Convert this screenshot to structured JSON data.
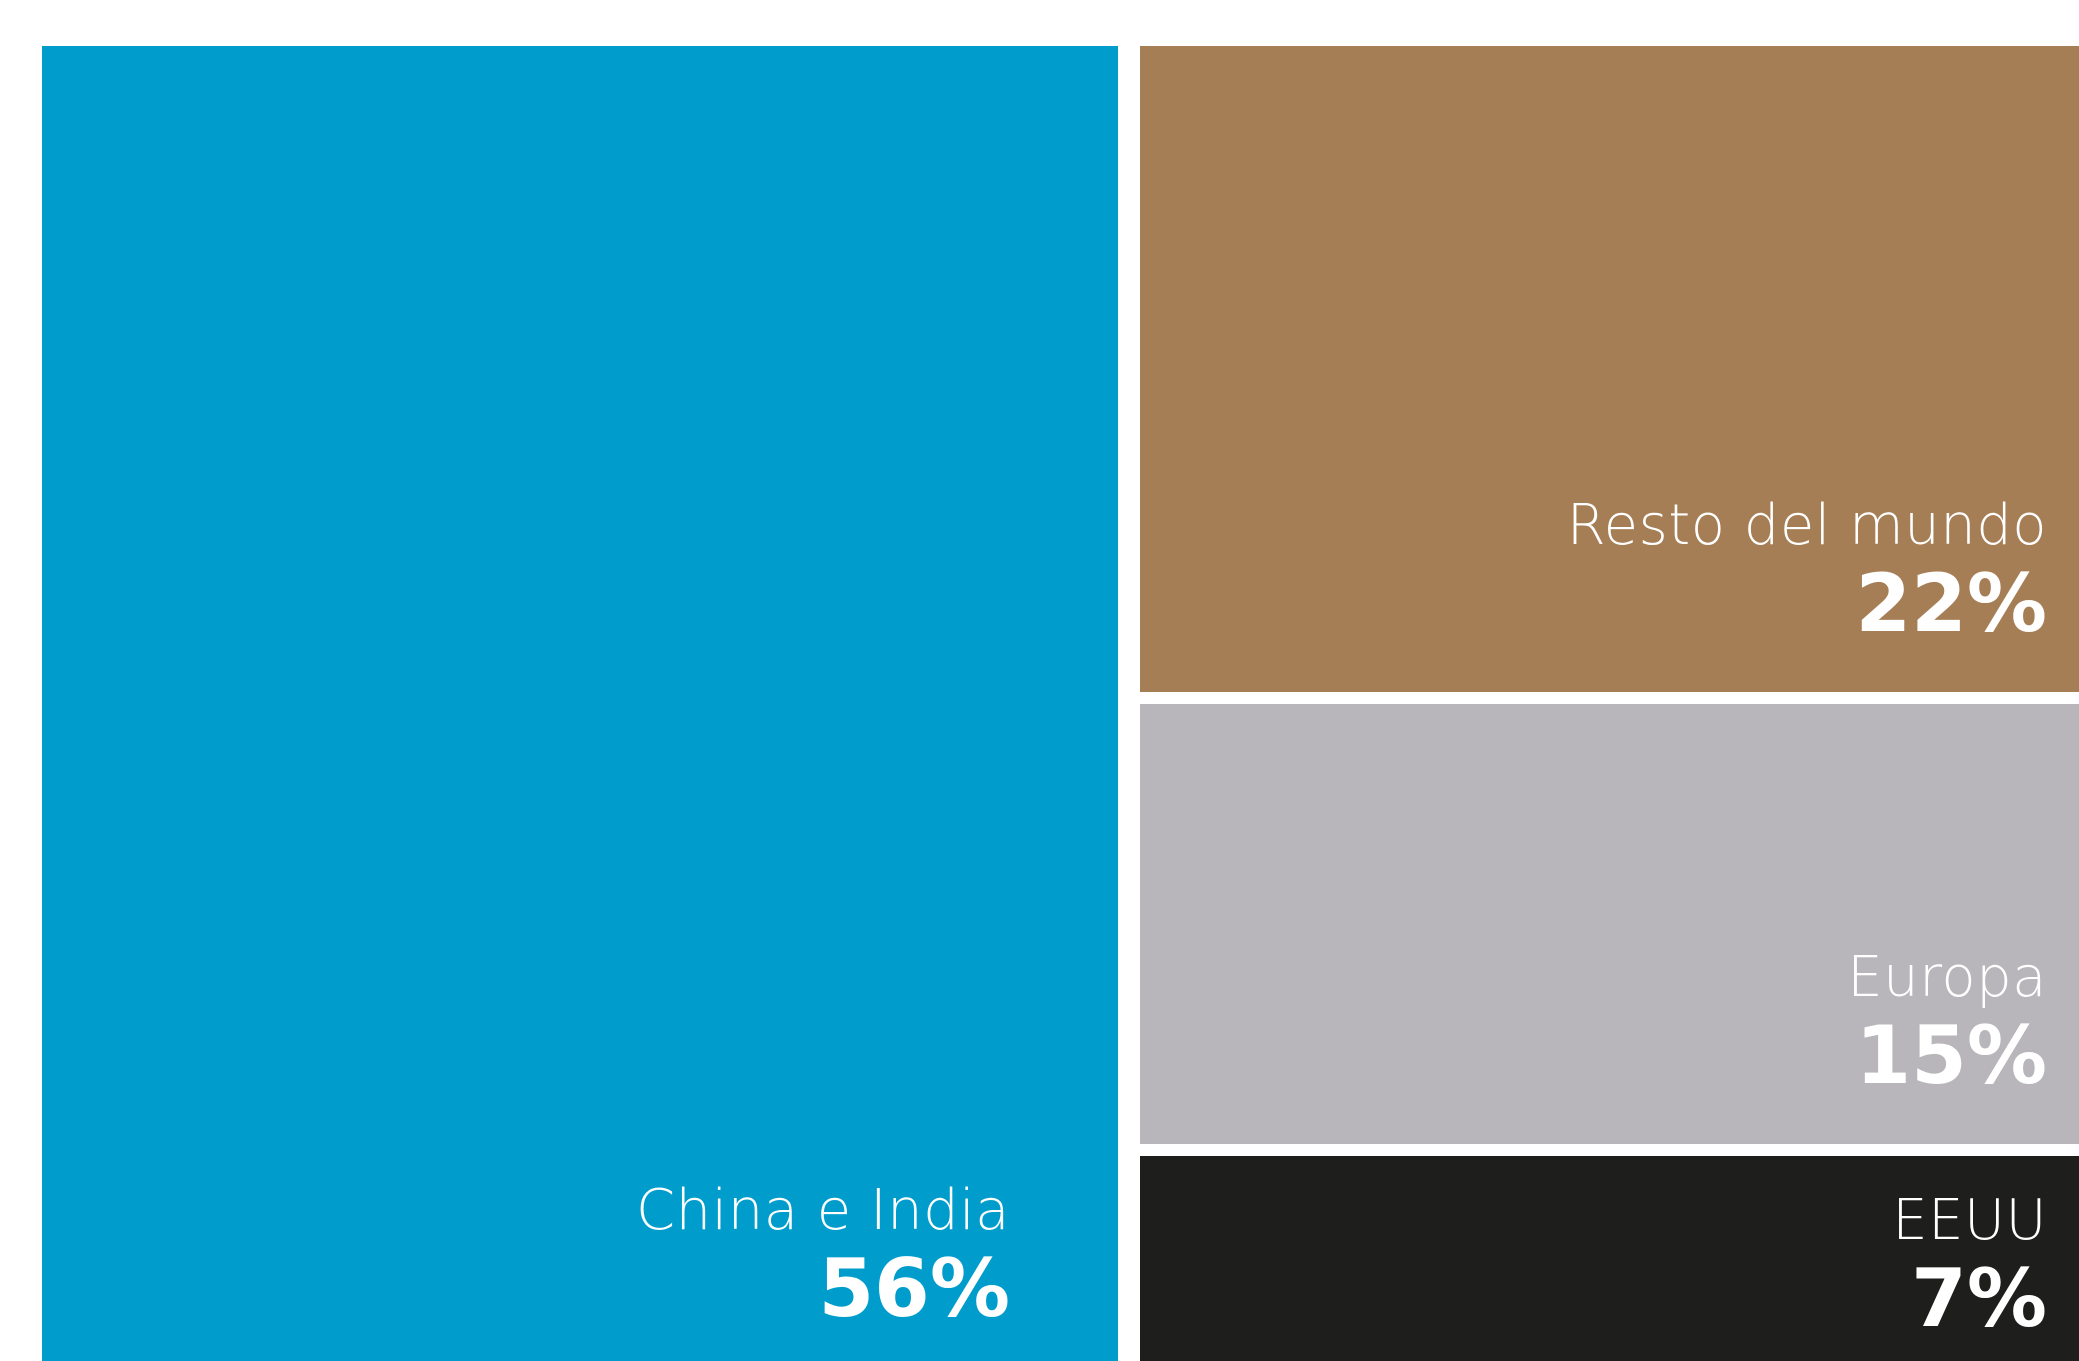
{
  "chart_data": {
    "type": "treemap",
    "unit": "%",
    "items": [
      {
        "key": "china_india",
        "label": "China e India",
        "value": 56,
        "value_label": "56%",
        "color": "#009DCC"
      },
      {
        "key": "resto",
        "label": "Resto del mundo",
        "value": 22,
        "value_label": "22%",
        "color": "#A67E55"
      },
      {
        "key": "europa",
        "label": "Europa",
        "value": 15,
        "value_label": "15%",
        "color": "#B8B6BB"
      },
      {
        "key": "eeuu",
        "label": "EEUU",
        "value": 7,
        "value_label": "7%",
        "color": "#1E1E1C"
      }
    ]
  }
}
